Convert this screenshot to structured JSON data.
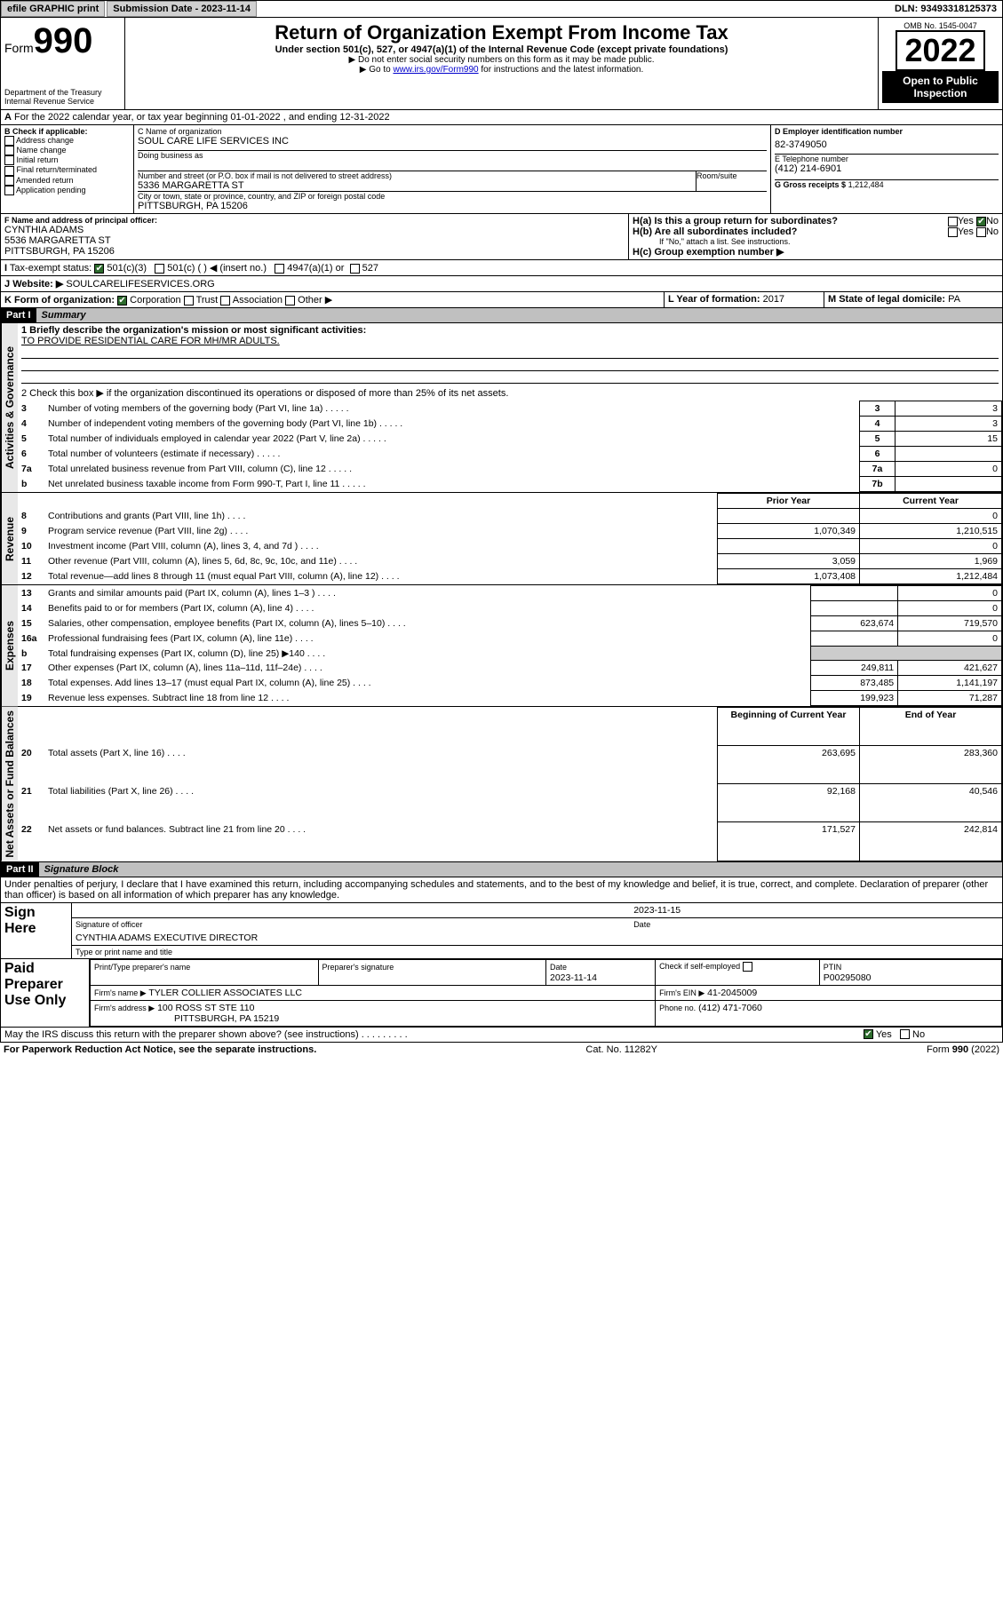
{
  "topbar": {
    "efile": "efile GRAPHIC print",
    "submission_label": "Submission Date - 2023-11-14",
    "dln": "DLN: 93493318125373"
  },
  "header": {
    "form_prefix": "Form",
    "form_number": "990",
    "dept": "Department of the Treasury",
    "irs": "Internal Revenue Service",
    "title": "Return of Organization Exempt From Income Tax",
    "subtitle": "Under section 501(c), 527, or 4947(a)(1) of the Internal Revenue Code (except private foundations)",
    "note1": "▶ Do not enter social security numbers on this form as it may be made public.",
    "note2_pre": "▶ Go to ",
    "note2_link": "www.irs.gov/Form990",
    "note2_post": " for instructions and the latest information.",
    "omb": "OMB No. 1545-0047",
    "year": "2022",
    "open": "Open to Public Inspection"
  },
  "periodA": "For the 2022 calendar year, or tax year beginning 01-01-2022   , and ending 12-31-2022",
  "boxB": {
    "label": "B Check if applicable:",
    "items": [
      "Address change",
      "Name change",
      "Initial return",
      "Final return/terminated",
      "Amended return",
      "Application pending"
    ]
  },
  "boxC": {
    "label_name": "C Name of organization",
    "name": "SOUL CARE LIFE SERVICES INC",
    "dba_label": "Doing business as",
    "addr_label": "Number and street (or P.O. box if mail is not delivered to street address)",
    "room_label": "Room/suite",
    "addr": "5336 MARGARETTA ST",
    "city_label": "City or town, state or province, country, and ZIP or foreign postal code",
    "city": "PITTSBURGH, PA  15206"
  },
  "boxD": {
    "label": "D Employer identification number",
    "value": "82-3749050"
  },
  "boxE": {
    "label": "E Telephone number",
    "value": "(412) 214-6901"
  },
  "boxG": {
    "label": "G Gross receipts $",
    "value": "1,212,484"
  },
  "boxF": {
    "label": "F Name and address of principal officer:",
    "name": "CYNTHIA ADAMS",
    "addr1": "5536 MARGARETTA ST",
    "addr2": "PITTSBURGH, PA  15206"
  },
  "boxH": {
    "ha": "H(a)  Is this a group return for subordinates?",
    "hb": "H(b)  Are all subordinates included?",
    "hb_note": "If \"No,\" attach a list. See instructions.",
    "hc": "H(c)  Group exemption number ▶",
    "yes": "Yes",
    "no": "No"
  },
  "boxI": {
    "label": "Tax-exempt status:",
    "opt1": "501(c)(3)",
    "opt2": "501(c) (  ) ◀ (insert no.)",
    "opt3": "4947(a)(1) or",
    "opt4": "527"
  },
  "boxJ": {
    "label": "Website: ▶",
    "value": "SOULCARELIFESERVICES.ORG"
  },
  "boxK": {
    "label": "K Form of organization:",
    "corp": "Corporation",
    "trust": "Trust",
    "assoc": "Association",
    "other": "Other ▶"
  },
  "boxL": {
    "label": "L Year of formation:",
    "value": "2017"
  },
  "boxM": {
    "label": "M State of legal domicile:",
    "value": "PA"
  },
  "part1": {
    "hdr": "Part I",
    "title": "Summary",
    "q1_label": "1  Briefly describe the organization's mission or most significant activities:",
    "q1_text": "TO PROVIDE RESIDENTIAL CARE FOR MH/MR ADULTS.",
    "q2": "2  Check this box ▶      if the organization discontinued its operations or disposed of more than 25% of its net assets.",
    "rows_gov": [
      {
        "n": "3",
        "t": "Number of voting members of the governing body (Part VI, line 1a)",
        "k": "3",
        "v": "3"
      },
      {
        "n": "4",
        "t": "Number of independent voting members of the governing body (Part VI, line 1b)",
        "k": "4",
        "v": "3"
      },
      {
        "n": "5",
        "t": "Total number of individuals employed in calendar year 2022 (Part V, line 2a)",
        "k": "5",
        "v": "15"
      },
      {
        "n": "6",
        "t": "Total number of volunteers (estimate if necessary)",
        "k": "6",
        "v": ""
      },
      {
        "n": "7a",
        "t": "Total unrelated business revenue from Part VIII, column (C), line 12",
        "k": "7a",
        "v": "0"
      },
      {
        "n": "b",
        "t": "Net unrelated business taxable income from Form 990-T, Part I, line 11",
        "k": "7b",
        "v": ""
      }
    ],
    "col_prior": "Prior Year",
    "col_curr": "Current Year",
    "rows_rev": [
      {
        "n": "8",
        "t": "Contributions and grants (Part VIII, line 1h)",
        "p": "",
        "c": "0"
      },
      {
        "n": "9",
        "t": "Program service revenue (Part VIII, line 2g)",
        "p": "1,070,349",
        "c": "1,210,515"
      },
      {
        "n": "10",
        "t": "Investment income (Part VIII, column (A), lines 3, 4, and 7d )",
        "p": "",
        "c": "0"
      },
      {
        "n": "11",
        "t": "Other revenue (Part VIII, column (A), lines 5, 6d, 8c, 9c, 10c, and 11e)",
        "p": "3,059",
        "c": "1,969"
      },
      {
        "n": "12",
        "t": "Total revenue—add lines 8 through 11 (must equal Part VIII, column (A), line 12)",
        "p": "1,073,408",
        "c": "1,212,484"
      }
    ],
    "rows_exp": [
      {
        "n": "13",
        "t": "Grants and similar amounts paid (Part IX, column (A), lines 1–3 )",
        "p": "",
        "c": "0"
      },
      {
        "n": "14",
        "t": "Benefits paid to or for members (Part IX, column (A), line 4)",
        "p": "",
        "c": "0"
      },
      {
        "n": "15",
        "t": "Salaries, other compensation, employee benefits (Part IX, column (A), lines 5–10)",
        "p": "623,674",
        "c": "719,570"
      },
      {
        "n": "16a",
        "t": "Professional fundraising fees (Part IX, column (A), line 11e)",
        "p": "",
        "c": "0"
      },
      {
        "n": "b",
        "t": "Total fundraising expenses (Part IX, column (D), line 25) ▶140",
        "p": "—",
        "c": "—"
      },
      {
        "n": "17",
        "t": "Other expenses (Part IX, column (A), lines 11a–11d, 11f–24e)",
        "p": "249,811",
        "c": "421,627"
      },
      {
        "n": "18",
        "t": "Total expenses. Add lines 13–17 (must equal Part IX, column (A), line 25)",
        "p": "873,485",
        "c": "1,141,197"
      },
      {
        "n": "19",
        "t": "Revenue less expenses. Subtract line 18 from line 12",
        "p": "199,923",
        "c": "71,287"
      }
    ],
    "col_beg": "Beginning of Current Year",
    "col_end": "End of Year",
    "rows_net": [
      {
        "n": "20",
        "t": "Total assets (Part X, line 16)",
        "p": "263,695",
        "c": "283,360"
      },
      {
        "n": "21",
        "t": "Total liabilities (Part X, line 26)",
        "p": "92,168",
        "c": "40,546"
      },
      {
        "n": "22",
        "t": "Net assets or fund balances. Subtract line 21 from line 20",
        "p": "171,527",
        "c": "242,814"
      }
    ],
    "side_gov": "Activities & Governance",
    "side_rev": "Revenue",
    "side_exp": "Expenses",
    "side_net": "Net Assets or Fund Balances"
  },
  "part2": {
    "hdr": "Part II",
    "title": "Signature Block",
    "decl": "Under penalties of perjury, I declare that I have examined this return, including accompanying schedules and statements, and to the best of my knowledge and belief, it is true, correct, and complete. Declaration of preparer (other than officer) is based on all information of which preparer has any knowledge.",
    "sign_here": "Sign Here",
    "sig_officer": "Signature of officer",
    "date": "Date",
    "sig_date": "2023-11-15",
    "officer_name": "CYNTHIA ADAMS  EXECUTIVE DIRECTOR",
    "type_name": "Type or print name and title",
    "paid": "Paid Preparer Use Only",
    "prep_name_label": "Print/Type preparer's name",
    "prep_sig_label": "Preparer's signature",
    "prep_date_label": "Date",
    "prep_date": "2023-11-14",
    "self_emp": "Check        if self-employed",
    "ptin_label": "PTIN",
    "ptin": "P00295080",
    "firm_name_label": "Firm's name    ▶",
    "firm_name": "TYLER COLLIER ASSOCIATES LLC",
    "firm_ein_label": "Firm's EIN ▶",
    "firm_ein": "41-2045009",
    "firm_addr_label": "Firm's address ▶",
    "firm_addr1": "100 ROSS ST STE 110",
    "firm_addr2": "PITTSBURGH, PA  15219",
    "phone_label": "Phone no.",
    "phone": "(412) 471-7060",
    "discuss": "May the IRS discuss this return with the preparer shown above? (see instructions)",
    "yes": "Yes",
    "no": "No"
  },
  "footer": {
    "left": "For Paperwork Reduction Act Notice, see the separate instructions.",
    "mid": "Cat. No. 11282Y",
    "right": "Form 990 (2022)"
  }
}
